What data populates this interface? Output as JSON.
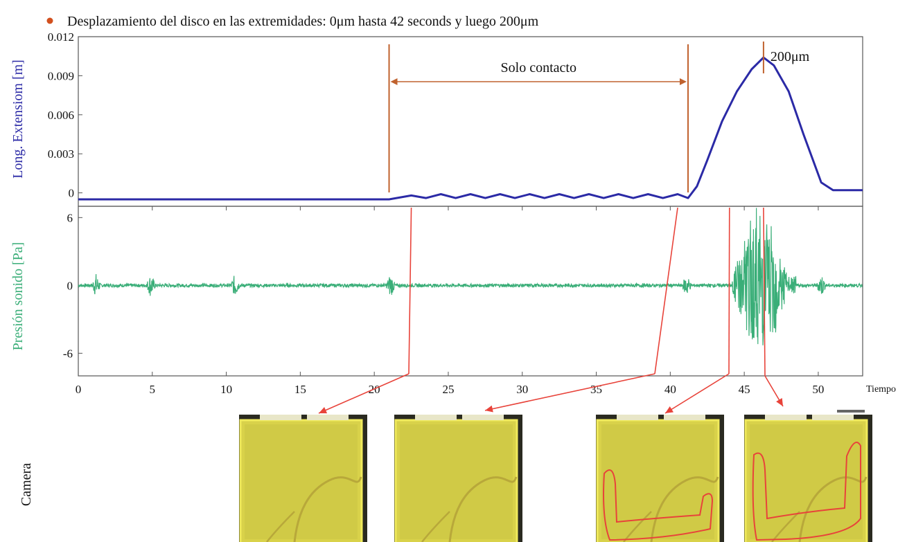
{
  "header": {
    "bullet_color": "#d2501e",
    "text": "Desplazamiento del disco en las extremidades: 0μm hasta 42 seconds y luego 200μm"
  },
  "colors": {
    "extension": "#2b2aa6",
    "pressure": "#3aae78",
    "annotation": "#c0622e",
    "marker": "#e8433a",
    "plate": "#d9d24a",
    "crack_outline": "#e8433a"
  },
  "chart_data": [
    {
      "type": "line",
      "ylabel": "Long. Extensiom [m]",
      "xlim": [
        0,
        53
      ],
      "ylim": [
        -0.0005,
        0.012
      ],
      "yticks": [
        0,
        0.003,
        0.006,
        0.009,
        0.012
      ],
      "ytick_labels": [
        "0",
        "0.003",
        "0.006",
        "0.009",
        "0.012"
      ],
      "series": [
        {
          "x": [
            0,
            21,
            22.5,
            23.5,
            24.5,
            25.5,
            26.5,
            27.5,
            28.5,
            29.5,
            30.5,
            31.5,
            32.5,
            33.5,
            34.5,
            35.5,
            36.5,
            37.5,
            38.5,
            39.5,
            40.5,
            41.2,
            41.8,
            42.5,
            43.5,
            44.5,
            45.5,
            46.3,
            47,
            48,
            49,
            50.2,
            51,
            53
          ],
          "y": [
            -0.0005,
            -0.0005,
            -0.0002,
            -0.0004,
            -0.0001,
            -0.0004,
            -0.0001,
            -0.0004,
            -0.0001,
            -0.0004,
            -0.0001,
            -0.0004,
            -0.0001,
            -0.0004,
            -0.0001,
            -0.0004,
            -0.0001,
            -0.0004,
            -0.0001,
            -0.0004,
            -0.0001,
            -0.0004,
            0.0005,
            0.0025,
            0.0055,
            0.0078,
            0.0095,
            0.0104,
            0.0098,
            0.0078,
            0.0045,
            0.0008,
            0.0002,
            0.0002
          ]
        }
      ],
      "annotations": {
        "span_label": "Solo contacto",
        "span_x": [
          21,
          41.2
        ],
        "peak_label": "200μm",
        "peak_x": 46.3
      }
    },
    {
      "type": "line",
      "ylabel": "Presión sonido [Pa]",
      "xlabel": "Tiempo [s",
      "xlim": [
        0,
        53
      ],
      "ylim": [
        -8,
        7
      ],
      "xticks": [
        0,
        5,
        10,
        15,
        20,
        25,
        30,
        35,
        40,
        45,
        50
      ],
      "xtick_labels": [
        "0",
        "5",
        "10",
        "15",
        "20",
        "25",
        "30",
        "35",
        "40",
        "45",
        "50"
      ],
      "yticks": [
        6,
        0,
        -6
      ],
      "ytick_labels": [
        "6",
        "0",
        "-6"
      ],
      "burst_x": [
        44.2,
        48.5
      ],
      "spikes_x": [
        1.2,
        4.9,
        10.6,
        21.1,
        41.1,
        50.2
      ],
      "markers_x": [
        22.5,
        40.5,
        44.0,
        46.3
      ]
    }
  ],
  "camera": {
    "label": "Camera",
    "frames": [
      {
        "name": "frame-1",
        "outline": "none"
      },
      {
        "name": "frame-2",
        "outline": "none"
      },
      {
        "name": "frame-3",
        "outline": "u-shape"
      },
      {
        "name": "frame-4",
        "outline": "u-tall"
      }
    ]
  }
}
